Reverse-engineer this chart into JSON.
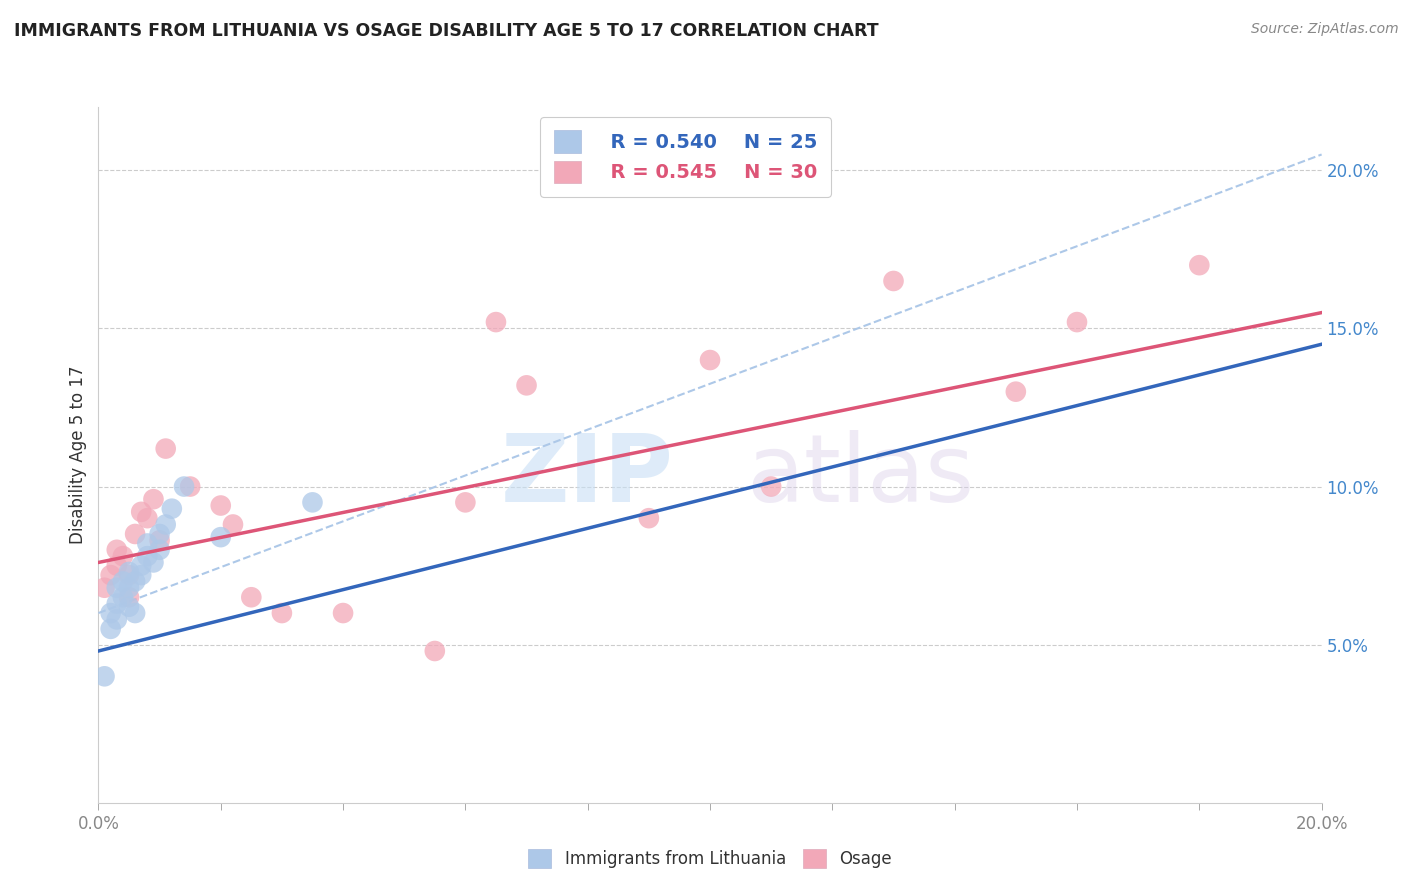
{
  "title": "IMMIGRANTS FROM LITHUANIA VS OSAGE DISABILITY AGE 5 TO 17 CORRELATION CHART",
  "source": "Source: ZipAtlas.com",
  "ylabel": "Disability Age 5 to 17",
  "legend_label_blue": "Immigrants from Lithuania",
  "legend_label_pink": "Osage",
  "r_blue": "R = 0.540",
  "n_blue": "N = 25",
  "r_pink": "R = 0.545",
  "n_pink": "N = 30",
  "xlim": [
    0.0,
    0.2
  ],
  "ylim": [
    0.0,
    0.22
  ],
  "xticks_major": [
    0.0,
    0.2
  ],
  "xticks_minor": [
    0.02,
    0.04,
    0.06,
    0.08,
    0.1,
    0.12,
    0.14,
    0.16,
    0.18
  ],
  "yticks_right": [
    0.05,
    0.1,
    0.15,
    0.2
  ],
  "color_blue": "#adc8e8",
  "color_pink": "#f2a8b8",
  "line_color_blue": "#3366bb",
  "line_color_pink": "#dd5577",
  "line_color_dashed": "#adc8e8",
  "background_color": "#ffffff",
  "blue_scatter_x": [
    0.001,
    0.002,
    0.002,
    0.003,
    0.003,
    0.003,
    0.004,
    0.004,
    0.005,
    0.005,
    0.005,
    0.006,
    0.006,
    0.007,
    0.007,
    0.008,
    0.008,
    0.009,
    0.01,
    0.01,
    0.011,
    0.012,
    0.014,
    0.02,
    0.035
  ],
  "blue_scatter_y": [
    0.04,
    0.055,
    0.06,
    0.058,
    0.063,
    0.068,
    0.065,
    0.07,
    0.062,
    0.068,
    0.073,
    0.06,
    0.07,
    0.072,
    0.075,
    0.078,
    0.082,
    0.076,
    0.08,
    0.085,
    0.088,
    0.093,
    0.1,
    0.084,
    0.095
  ],
  "pink_scatter_x": [
    0.001,
    0.002,
    0.003,
    0.003,
    0.004,
    0.005,
    0.005,
    0.006,
    0.007,
    0.008,
    0.009,
    0.01,
    0.011,
    0.015,
    0.02,
    0.022,
    0.025,
    0.03,
    0.04,
    0.055,
    0.06,
    0.065,
    0.07,
    0.09,
    0.1,
    0.11,
    0.13,
    0.15,
    0.16,
    0.18
  ],
  "pink_scatter_y": [
    0.068,
    0.072,
    0.075,
    0.08,
    0.078,
    0.065,
    0.072,
    0.085,
    0.092,
    0.09,
    0.096,
    0.083,
    0.112,
    0.1,
    0.094,
    0.088,
    0.065,
    0.06,
    0.06,
    0.048,
    0.095,
    0.152,
    0.132,
    0.09,
    0.14,
    0.1,
    0.165,
    0.13,
    0.152,
    0.17
  ],
  "blue_line_x": [
    0.0,
    0.2
  ],
  "blue_line_y": [
    0.048,
    0.145
  ],
  "pink_line_x": [
    0.0,
    0.2
  ],
  "pink_line_y": [
    0.076,
    0.155
  ],
  "dashed_line_x": [
    0.0,
    0.2
  ],
  "dashed_line_y": [
    0.06,
    0.205
  ]
}
